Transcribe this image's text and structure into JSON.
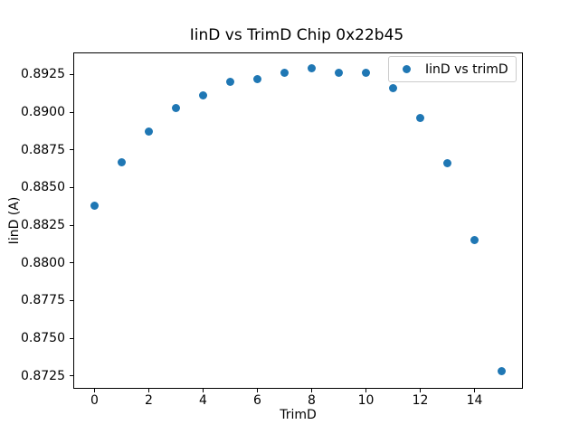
{
  "chart_data": {
    "type": "scatter",
    "title": "IinD vs TrimD Chip 0x22b45",
    "xlabel": "TrimD",
    "ylabel": "IinD (A)",
    "series": [
      {
        "name": "IinD vs trimD",
        "color": "#1f77b4",
        "x": [
          0,
          1,
          2,
          3,
          4,
          5,
          6,
          7,
          8,
          9,
          10,
          11,
          12,
          13,
          14,
          15
        ],
        "y": [
          0.8838,
          0.8867,
          0.8887,
          0.8903,
          0.8911,
          0.892,
          0.8922,
          0.8926,
          0.8929,
          0.8926,
          0.8926,
          0.8916,
          0.8896,
          0.8866,
          0.8815,
          0.8728
        ]
      }
    ],
    "xlim": [
      -0.75,
      15.75
    ],
    "ylim": [
      0.8717,
      0.8939
    ],
    "x_ticks": [
      0,
      2,
      4,
      6,
      8,
      10,
      12,
      14
    ],
    "y_ticks": [
      0.8725,
      0.875,
      0.8775,
      0.88,
      0.8825,
      0.885,
      0.8875,
      0.89,
      0.8925
    ],
    "y_tick_decimals": 4,
    "grid": false,
    "legend_position": "upper right",
    "axis_color": "#000000",
    "background_color": "#ffffff"
  }
}
